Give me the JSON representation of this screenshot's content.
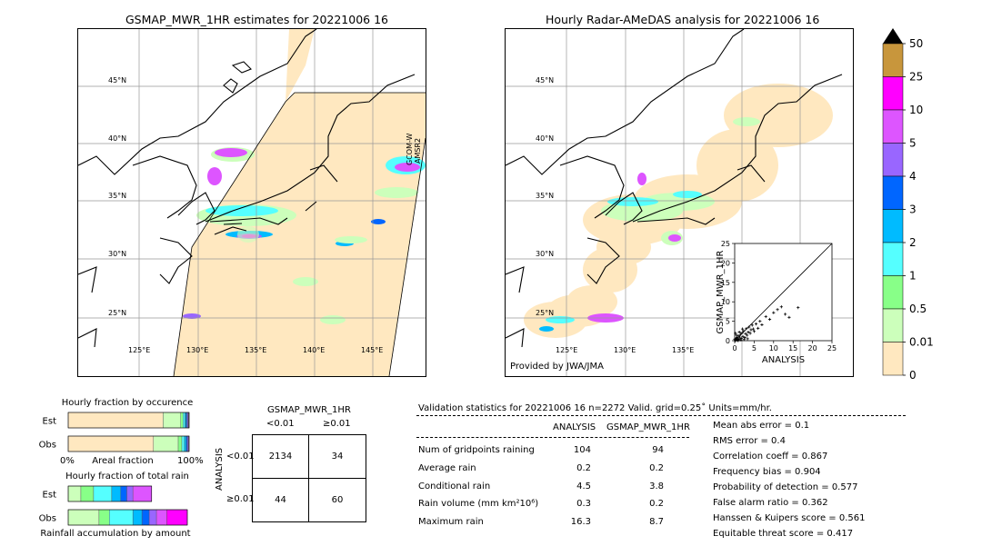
{
  "left_panel": {
    "title": "GSMAP_MWR_1HR estimates for 20221006 16",
    "side_label_1": "GCOM-W",
    "side_label_2": "AMSR2",
    "lat_labels": [
      "45°N",
      "40°N",
      "35°N",
      "30°N",
      "25°N"
    ],
    "lon_labels": [
      "125°E",
      "130°E",
      "135°E",
      "140°E",
      "145°E"
    ]
  },
  "right_panel": {
    "title": "Hourly Radar-AMeDAS analysis for 20221006 16",
    "credit": "Provided by JWA/JMA",
    "lat_labels": [
      "45°N",
      "40°N",
      "35°N",
      "30°N",
      "25°N"
    ],
    "lon_labels": [
      "125°E",
      "130°E",
      "135°E"
    ]
  },
  "colorbar": {
    "labels": [
      "50",
      "25",
      "10",
      "5",
      "4",
      "3",
      "2",
      "1",
      "0.5",
      "0.01",
      "0"
    ],
    "colors": [
      "#c8963c",
      "#ff00ff",
      "#dd55ff",
      "#9966ff",
      "#0066ff",
      "#00bbff",
      "#55ffff",
      "#88ff88",
      "#ccffbb",
      "#ffe8c0"
    ],
    "extend_color": "#000000"
  },
  "chart_data": [
    {
      "type": "scatter",
      "title": "",
      "xlabel": "ANALYSIS",
      "ylabel": "GSMAP_MWR_1HR",
      "xlim": [
        0,
        25
      ],
      "ylim": [
        0,
        25
      ],
      "xticks": [
        "0",
        "5",
        "10",
        "15",
        "20",
        "25"
      ],
      "yticks": [
        "0",
        "5",
        "10",
        "15",
        "20",
        "25"
      ],
      "points": [
        [
          0.2,
          0.1
        ],
        [
          0.4,
          0.3
        ],
        [
          0.5,
          0.2
        ],
        [
          0.6,
          0.8
        ],
        [
          0.8,
          0.5
        ],
        [
          1.0,
          1.2
        ],
        [
          1.1,
          0.4
        ],
        [
          1.3,
          0.9
        ],
        [
          1.5,
          1.6
        ],
        [
          1.7,
          0.6
        ],
        [
          1.9,
          2.0
        ],
        [
          2.1,
          1.1
        ],
        [
          2.3,
          2.5
        ],
        [
          2.6,
          0.8
        ],
        [
          2.8,
          1.8
        ],
        [
          3.0,
          3.1
        ],
        [
          3.2,
          1.4
        ],
        [
          3.5,
          2.2
        ],
        [
          3.7,
          3.5
        ],
        [
          4.0,
          1.9
        ],
        [
          4.2,
          2.8
        ],
        [
          4.5,
          4.0
        ],
        [
          4.8,
          3.0
        ],
        [
          5.0,
          2.4
        ],
        [
          5.5,
          4.3
        ],
        [
          6.0,
          3.2
        ],
        [
          6.5,
          5.0
        ],
        [
          7.0,
          4.1
        ],
        [
          8.0,
          6.2
        ],
        [
          9.0,
          5.5
        ],
        [
          10.0,
          7.2
        ],
        [
          11.0,
          8.0
        ],
        [
          12.0,
          8.7
        ],
        [
          13.0,
          6.8
        ],
        [
          14.0,
          6.0
        ],
        [
          16.3,
          8.5
        ],
        [
          0.3,
          0.6
        ],
        [
          0.7,
          0.2
        ],
        [
          1.2,
          2.2
        ],
        [
          2.0,
          3.0
        ],
        [
          0.1,
          0.0
        ],
        [
          0.0,
          0.4
        ],
        [
          0.9,
          0.0
        ],
        [
          1.6,
          0.2
        ],
        [
          0.5,
          1.4
        ],
        [
          2.4,
          0.3
        ],
        [
          3.3,
          0.5
        ],
        [
          0.2,
          1.9
        ]
      ]
    },
    {
      "type": "bar",
      "title": "Hourly fraction by occurence",
      "categories": [
        "Est",
        "Obs"
      ],
      "xlabel": "Areal fraction",
      "x_tick_labels": [
        "0%",
        "100%"
      ],
      "series": [
        {
          "color": "#ffe8c0",
          "values": [
            0.785,
            0.705
          ]
        },
        {
          "color": "#ccffbb",
          "values": [
            0.145,
            0.205
          ]
        },
        {
          "color": "#88ff88",
          "values": [
            0.02,
            0.03
          ]
        },
        {
          "color": "#55ffff",
          "values": [
            0.015,
            0.02
          ]
        },
        {
          "color": "#00bbff",
          "values": [
            0.01,
            0.015
          ]
        },
        {
          "color": "#0066ff",
          "values": [
            0.008,
            0.01
          ]
        },
        {
          "color": "#9966ff",
          "values": [
            0.007,
            0.008
          ]
        },
        {
          "color": "#dd55ff",
          "values": [
            0.005,
            0.005
          ]
        },
        {
          "color": "#ff00ff",
          "values": [
            0.003,
            0.002
          ]
        },
        {
          "color": "#000000",
          "values": [
            0.002,
            0.0
          ]
        }
      ]
    },
    {
      "type": "bar",
      "title": "Hourly fraction of total rain",
      "categories": [
        "Est",
        "Obs"
      ],
      "xlabel": "Rainfall accumulation by amount",
      "series": [
        {
          "color": "#ffe8c0",
          "values": [
            0.0,
            0.0
          ]
        },
        {
          "color": "#ccffbb",
          "values": [
            0.105,
            0.255
          ]
        },
        {
          "color": "#88ff88",
          "values": [
            0.105,
            0.085
          ]
        },
        {
          "color": "#55ffff",
          "values": [
            0.15,
            0.195
          ]
        },
        {
          "color": "#00bbff",
          "values": [
            0.075,
            0.075
          ]
        },
        {
          "color": "#0066ff",
          "values": [
            0.05,
            0.06
          ]
        },
        {
          "color": "#9966ff",
          "values": [
            0.05,
            0.06
          ]
        },
        {
          "color": "#dd55ff",
          "values": [
            0.155,
            0.085
          ]
        },
        {
          "color": "#ff00ff",
          "values": [
            0.0,
            0.17
          ]
        }
      ]
    }
  ],
  "contingency": {
    "col_header": "GSMAP_MWR_1HR",
    "col_labels": [
      "<0.01",
      "≥0.01"
    ],
    "row_header": "ANALYSIS",
    "row_labels": [
      "<0.01",
      "≥0.01"
    ],
    "cells": [
      [
        "2134",
        "34"
      ],
      [
        "44",
        "60"
      ]
    ]
  },
  "validation": {
    "header": "Validation statistics for 20221006 16  n=2272 Valid. grid=0.25˚ Units=mm/hr.",
    "col_analysis": "ANALYSIS",
    "col_gsmap": "GSMAP_MWR_1HR",
    "rows": [
      {
        "label": "Num of gridpoints raining",
        "analysis": "104",
        "gsmap": "94"
      },
      {
        "label": "Average rain",
        "analysis": "0.2",
        "gsmap": "0.2"
      },
      {
        "label": "Conditional rain",
        "analysis": "4.5",
        "gsmap": "3.8"
      },
      {
        "label": "Rain volume (mm km²10⁶)",
        "analysis": "0.3",
        "gsmap": "0.2"
      },
      {
        "label": "Maximum rain",
        "analysis": "16.3",
        "gsmap": "8.7"
      }
    ],
    "scores": [
      "Mean abs error =    0.1",
      "RMS error =    0.4",
      "Correlation coeff =  0.867",
      "Frequency bias =  0.904",
      "Probability of detection =  0.577",
      "False alarm ratio =  0.362",
      "Hanssen & Kuipers score =  0.561",
      "Equitable threat score =  0.417"
    ]
  }
}
